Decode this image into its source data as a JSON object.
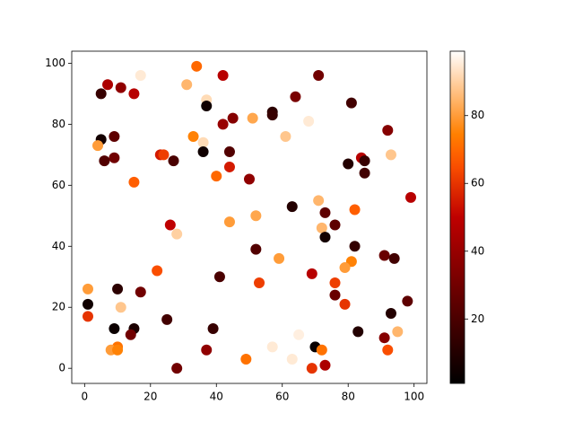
{
  "chart_data": {
    "type": "scatter",
    "x": [
      34,
      42,
      17,
      71,
      7,
      11,
      31,
      5,
      15,
      64,
      37,
      37,
      81,
      57,
      57,
      45,
      51,
      68,
      42,
      92,
      33,
      9,
      61,
      5,
      36,
      4,
      36,
      44,
      23,
      24,
      93,
      84,
      9,
      85,
      6,
      27,
      80,
      44,
      85,
      40,
      50,
      15,
      99,
      71,
      63,
      82,
      73,
      52,
      44,
      26,
      76,
      72,
      28,
      73,
      82,
      52,
      91,
      94,
      59,
      81,
      79,
      22,
      69,
      41,
      76,
      53,
      1,
      10,
      17,
      76,
      98,
      1,
      79,
      11,
      93,
      1,
      25,
      9,
      15,
      39,
      83,
      65,
      14,
      91,
      95,
      57,
      70,
      10,
      37,
      8,
      10,
      72,
      92,
      63,
      49,
      73,
      28,
      69
    ],
    "y": [
      99,
      96,
      96,
      96,
      93,
      92,
      93,
      90,
      90,
      89,
      88,
      86,
      87,
      84,
      83,
      82,
      82,
      81,
      80,
      78,
      76,
      76,
      76,
      75,
      74,
      73,
      71,
      71,
      70,
      70,
      70,
      69,
      69,
      68,
      68,
      68,
      67,
      66,
      64,
      63,
      62,
      61,
      56,
      55,
      53,
      52,
      51,
      50,
      48,
      47,
      47,
      46,
      44,
      43,
      40,
      39,
      37,
      36,
      36,
      35,
      33,
      32,
      31,
      30,
      28,
      28,
      26,
      26,
      25,
      24,
      22,
      21,
      21,
      20,
      18,
      17,
      16,
      13,
      13,
      13,
      12,
      11,
      11,
      10,
      12,
      7,
      7,
      7,
      6,
      6,
      6,
      6,
      6,
      3,
      3,
      1,
      0,
      0
    ],
    "c": [
      70,
      48,
      95,
      30,
      45,
      38,
      85,
      15,
      48,
      32,
      92,
      5,
      18,
      12,
      15,
      35,
      82,
      95,
      40,
      35,
      75,
      25,
      88,
      6,
      92,
      80,
      5,
      22,
      55,
      62,
      88,
      48,
      30,
      15,
      22,
      20,
      10,
      55,
      18,
      70,
      38,
      68,
      48,
      85,
      10,
      68,
      25,
      82,
      80,
      50,
      25,
      85,
      90,
      6,
      14,
      22,
      28,
      18,
      80,
      75,
      80,
      65,
      48,
      20,
      62,
      62,
      80,
      12,
      30,
      28,
      25,
      5,
      60,
      88,
      10,
      60,
      18,
      4,
      8,
      15,
      10,
      96,
      30,
      35,
      85,
      95,
      3,
      72,
      38,
      80,
      75,
      72,
      65,
      95,
      72,
      45,
      30,
      60
    ],
    "colormap": "gist_heat",
    "clim": [
      1,
      99
    ],
    "cticks": [
      20,
      40,
      60,
      80
    ],
    "xlim": [
      -3.9,
      103.9
    ],
    "ylim": [
      -4.95,
      103.95
    ],
    "xticks": [
      0,
      20,
      40,
      60,
      80,
      100
    ],
    "yticks": [
      0,
      20,
      40,
      60,
      80,
      100
    ]
  }
}
